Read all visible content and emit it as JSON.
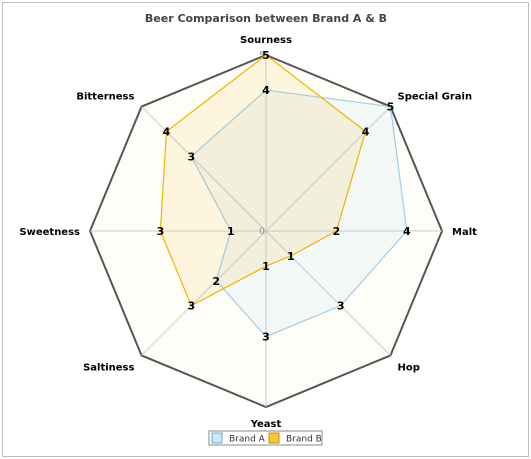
{
  "chart_data": {
    "type": "radar",
    "title": "Beer Comparison between Brand A & B",
    "axes": [
      "Sourness",
      "Special Grain",
      "Malt",
      "Hop",
      "Yeast",
      "Saltiness",
      "Sweetness",
      "Bitterness"
    ],
    "range": [
      0,
      5
    ],
    "grid": true,
    "legend_position": "bottom",
    "series": [
      {
        "name": "Brand A",
        "values": [
          4,
          5,
          4,
          3,
          3,
          2,
          1,
          3
        ],
        "color": "#9fcdec"
      },
      {
        "name": "Brand B",
        "values": [
          5,
          4,
          2,
          1,
          1,
          3,
          3,
          4
        ],
        "color": "#f0b400"
      }
    ]
  }
}
